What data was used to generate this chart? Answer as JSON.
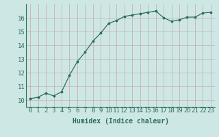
{
  "title": "",
  "xlabel": "Humidex (Indice chaleur)",
  "ylabel": "",
  "x": [
    0,
    1,
    2,
    3,
    4,
    5,
    6,
    7,
    8,
    9,
    10,
    11,
    12,
    13,
    14,
    15,
    16,
    17,
    18,
    19,
    20,
    21,
    22,
    23
  ],
  "y": [
    10.1,
    10.2,
    10.5,
    10.3,
    10.6,
    11.8,
    12.8,
    13.5,
    14.3,
    14.9,
    15.6,
    15.8,
    16.1,
    16.2,
    16.3,
    16.4,
    16.5,
    16.0,
    15.75,
    15.85,
    16.05,
    16.05,
    16.35,
    16.4
  ],
  "ylim": [
    9.5,
    17.0
  ],
  "xlim": [
    -0.5,
    23.5
  ],
  "line_color": "#2e6b5e",
  "marker_color": "#2e6b5e",
  "bg_color": "#cde8e4",
  "grid_color_v": "#d4a0a0",
  "grid_color_h": "#c0b0b0",
  "tick_label_color": "#2e6b5e",
  "xlabel_color": "#2e6b5e",
  "yticks": [
    10,
    11,
    12,
    13,
    14,
    15,
    16
  ],
  "xticks": [
    0,
    1,
    2,
    3,
    4,
    5,
    6,
    7,
    8,
    9,
    10,
    11,
    12,
    13,
    14,
    15,
    16,
    17,
    18,
    19,
    20,
    21,
    22,
    23
  ],
  "xlabel_fontsize": 7,
  "tick_fontsize": 6.5
}
